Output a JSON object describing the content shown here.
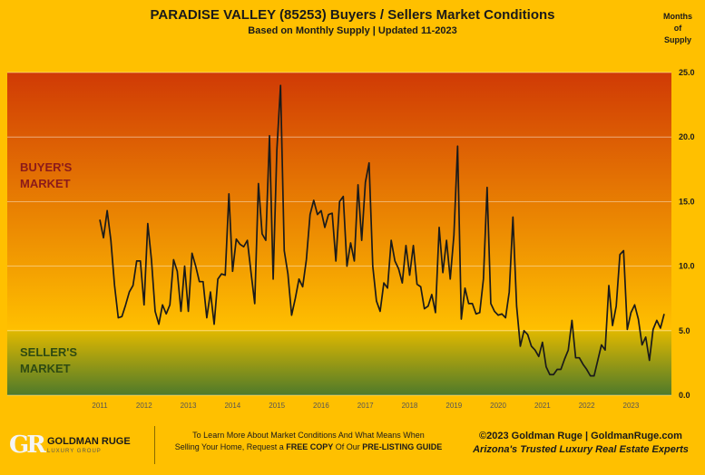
{
  "header": {
    "title": "PARADISE VALLEY (85253) Buyers / Sellers Market Conditions",
    "subtitle": "Based on Monthly Supply | Updated 11-2023",
    "axis_unit_lines": [
      "Months",
      "of",
      "Supply"
    ]
  },
  "zones": {
    "buyer_lines": [
      "BUYER'S",
      "MARKET"
    ],
    "seller_lines": [
      "SELLER'S",
      "MARKET"
    ]
  },
  "colors": {
    "background": "#FFC000",
    "buyer_top": "#D03A05",
    "buyer_bottom": "#FFC000",
    "seller_top": "#E0B800",
    "seller_bottom": "#4E7A2A",
    "line": "#1a1a1a"
  },
  "chart_data": {
    "type": "line",
    "title": "PARADISE VALLEY (85253) Buyers / Sellers Market Conditions",
    "subtitle": "Based on Monthly Supply | Updated 11-2023",
    "ylabel": "Months of Supply",
    "ylim": [
      0,
      25
    ],
    "yticks": [
      "0.0",
      "5.0",
      "10.0",
      "15.0",
      "20.0",
      "25.0"
    ],
    "ytick_values": [
      0,
      5,
      10,
      15,
      20,
      25
    ],
    "xticks": [
      "2011",
      "2012",
      "2013",
      "2014",
      "2015",
      "2016",
      "2017",
      "2018",
      "2019",
      "2020",
      "2021",
      "2022",
      "2023"
    ],
    "x_start": "2011-01",
    "x_end": "2023-11",
    "grid": true,
    "buyer_market_above": 5,
    "series": [
      {
        "name": "",
        "values": [
          13.6,
          12.2,
          14.3,
          12.0,
          8.5,
          6.0,
          6.1,
          7.0,
          8.0,
          8.5,
          10.4,
          10.4,
          7.0,
          13.3,
          10.5,
          6.5,
          5.5,
          7.0,
          6.3,
          7.0,
          10.5,
          9.6,
          6.5,
          10.0,
          6.5,
          11.0,
          10.0,
          8.8,
          8.8,
          6.0,
          8.0,
          5.5,
          9.0,
          9.4,
          9.3,
          15.6,
          9.6,
          12.1,
          11.7,
          11.5,
          12.0,
          9.5,
          7.1,
          16.4,
          12.5,
          12.0,
          20.1,
          9.0,
          19.0,
          24.0,
          11.2,
          9.4,
          6.2,
          7.5,
          9.0,
          8.4,
          10.5,
          14.0,
          15.1,
          14.0,
          14.3,
          13.0,
          14.0,
          14.1,
          10.4,
          15.0,
          15.4,
          10.0,
          11.8,
          10.4,
          16.3,
          12.0,
          16.5,
          18.0,
          10.0,
          7.3,
          6.5,
          8.7,
          8.3,
          12.0,
          10.4,
          9.8,
          8.7,
          11.6,
          9.3,
          11.6,
          8.6,
          8.4,
          6.7,
          6.9,
          7.8,
          6.4,
          13.0,
          9.5,
          12.0,
          9.0,
          12.4,
          19.3,
          5.9,
          8.3,
          7.1,
          7.1,
          6.3,
          6.4,
          9.0,
          16.1,
          7.1,
          6.5,
          6.2,
          6.3,
          6.0,
          8.0,
          13.8,
          6.9,
          3.8,
          5.0,
          4.7,
          3.8,
          3.5,
          3.0,
          4.1,
          2.2,
          1.6,
          1.6,
          2.0,
          2.0,
          2.8,
          3.5,
          5.8,
          2.9,
          2.9,
          2.4,
          2.0,
          1.5,
          1.5,
          2.7,
          3.9,
          3.5,
          8.5,
          5.4,
          6.9,
          10.9,
          11.2,
          5.1,
          6.4,
          7.0,
          5.9,
          3.9,
          4.5,
          2.7,
          5.1,
          5.8,
          5.2,
          6.3
        ]
      }
    ]
  },
  "footer": {
    "logo_mark": "GR",
    "logo_name": "GOLDMAN RUGE",
    "logo_tagline": "LUXURY GROUP",
    "cta_line1": "To Learn More About Market Conditions And What Means When",
    "cta_line2_pre": "Selling Your Home, Request a ",
    "cta_line2_bold": "FREE COPY",
    "cta_line2_mid": " Of Our ",
    "cta_line2_bold2": "PRE-LISTING GUIDE",
    "brand_line1": "©2023 Goldman Ruge  |  GoldmanRuge.com",
    "brand_line2": "Arizona's Trusted Luxury Real Estate Experts"
  }
}
